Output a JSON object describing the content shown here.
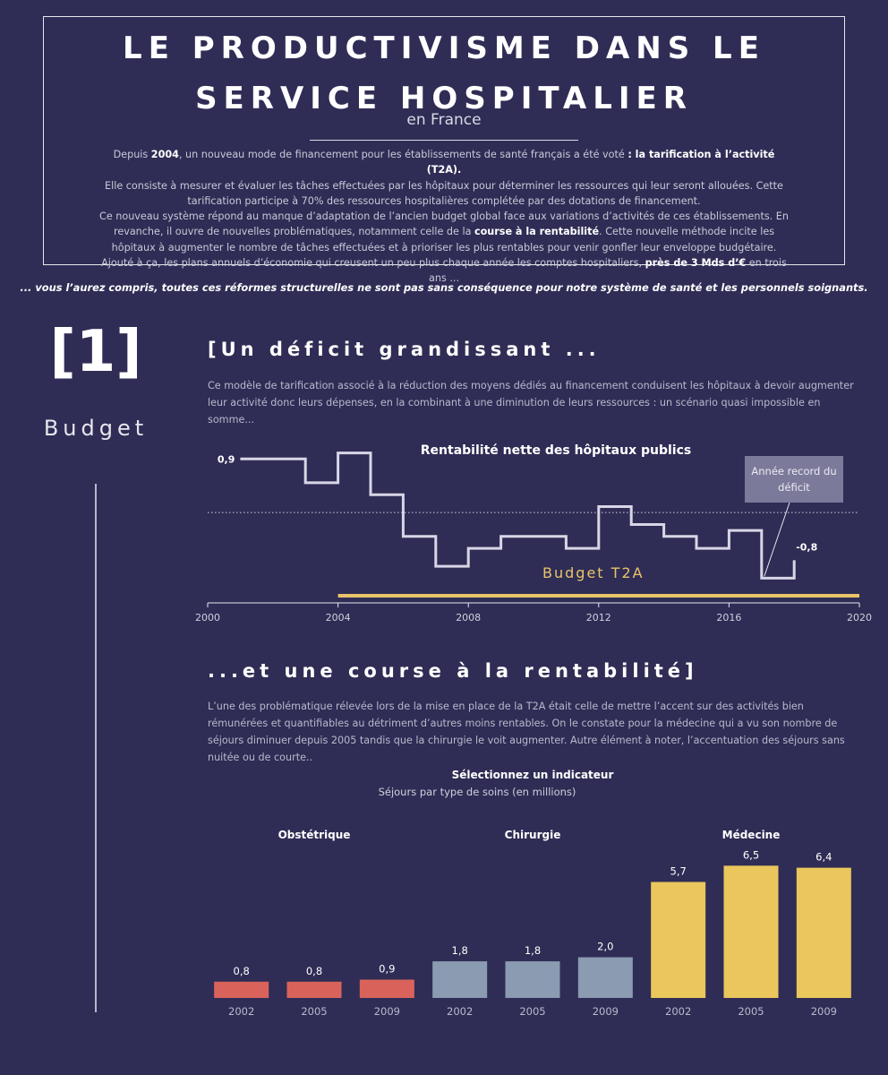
{
  "header": {
    "title": "LE PRODUCTIVISME DANS LE SERVICE HOSPITALIER",
    "subtitle": "en France",
    "paragraphs": [
      [
        {
          "t": "Depuis "
        },
        {
          "t": "2004",
          "b": true
        },
        {
          "t": ", un nouveau mode de financement pour les établissements de santé français a été voté "
        },
        {
          "t": ": la tarification à l’activité (T2A).",
          "b": true
        }
      ],
      [
        {
          "t": "Elle consiste à mesurer et évaluer les tâches effectuées par les hôpitaux pour déterminer les ressources qui leur seront allouées. Cette tarification participe à 70% des ressources hospitalières complétée par des dotations de financement."
        }
      ],
      [
        {
          "t": "Ce nouveau système répond au manque d’adaptation de l’ancien budget global face aux variations d’activités de ces établissements. En revanche, il ouvre de nouvelles problématiques, notamment celle de la "
        },
        {
          "t": "course à la rentabilité",
          "b": true
        },
        {
          "t": ". Cette nouvelle méthode incite les hôpitaux à augmenter le nombre de tâches effectuées et à prioriser les plus rentables pour venir gonfler leur enveloppe budgétaire. Ajouté à ça, les plans annuels d’économie qui creusent un peu plus chaque année les comptes hospitaliers, "
        },
        {
          "t": "près de 3 Mds d’€",
          "b": true
        },
        {
          "t": " en trois ans ..."
        }
      ]
    ]
  },
  "tagline": "... vous l’aurez compris, toutes ces réformes structurelles ne sont pas sans conséquence pour notre système de santé et les personnels soignants.",
  "section": {
    "number": "[1]",
    "label": "Budget"
  },
  "part1": {
    "heading": "[Un déficit grandissant ...",
    "text": "Ce modèle de tarification associé à la réduction des moyens dédiés au financement conduisent les hôpitaux à devoir augmenter leur activité donc leurs dépenses, en la combinant à une diminution de leurs ressources : un scénario quasi impossible en somme..."
  },
  "part2": {
    "heading": "...et une course à la rentabilité]",
    "text": "L’une des problématique rélevée lors de la mise en place de la T2A était celle de mettre l’accent sur des activités bien rémunérées et quantifiables au détriment d’autres moins rentables. On le constate pour la médecine qui a vu son nombre de séjours diminuer depuis 2005 tandis que la chirurgie le voit augmenter. Autre élément à noter, l’accentuation des séjours sans nuitée ou de courte.."
  },
  "chart_data": [
    {
      "type": "step",
      "title": "Rentabilité nette des hôpitaux publics",
      "x": [
        2001,
        2002,
        2003,
        2004,
        2005,
        2006,
        2007,
        2008,
        2009,
        2010,
        2011,
        2012,
        2013,
        2014,
        2015,
        2016,
        2017,
        2018
      ],
      "values": [
        0.9,
        0.9,
        0.5,
        1.0,
        0.3,
        -0.4,
        -0.9,
        -0.6,
        -0.4,
        -0.4,
        -0.6,
        0.1,
        -0.2,
        -0.4,
        -0.6,
        -0.3,
        -1.1,
        -0.8
      ],
      "value_labels": [
        "0,9",
        null,
        null,
        null,
        null,
        null,
        null,
        null,
        null,
        null,
        null,
        null,
        null,
        null,
        null,
        null,
        null,
        "-0,8"
      ],
      "color": "#d8d6e6",
      "xlim": [
        2000,
        2020
      ],
      "xticks": [
        2000,
        2004,
        2008,
        2012,
        2016,
        2020
      ],
      "ylim": [
        -1.5,
        1.4
      ],
      "reference_line": 0,
      "band": {
        "label": "Budget T2A",
        "from": 2004,
        "to": 2020,
        "color": "#e9c46a"
      },
      "annotation": {
        "text": "Année record du déficit",
        "x": 2017
      }
    },
    {
      "type": "grouped-bar",
      "title": "Sélectionnez un indicateur",
      "subtitle": "Séjours par type de soins (en millions)",
      "ylim": [
        0,
        7
      ],
      "groups": [
        {
          "name": "Obstétrique",
          "color": "#d9635b",
          "categories": [
            "2002",
            "2005",
            "2009"
          ],
          "values": [
            0.8,
            0.8,
            0.9
          ],
          "value_labels": [
            "0,8",
            "0,8",
            "0,9"
          ]
        },
        {
          "name": "Chirurgie",
          "color": "#8b9bb1",
          "categories": [
            "2002",
            "2005",
            "2009"
          ],
          "values": [
            1.8,
            1.8,
            2.0
          ],
          "value_labels": [
            "1,8",
            "1,8",
            "2,0"
          ]
        },
        {
          "name": "Médecine",
          "color": "#eac65c",
          "categories": [
            "2002",
            "2005",
            "2009"
          ],
          "values": [
            5.7,
            6.5,
            6.4
          ],
          "value_labels": [
            "5,7",
            "6,5",
            "6,4"
          ]
        }
      ]
    }
  ]
}
